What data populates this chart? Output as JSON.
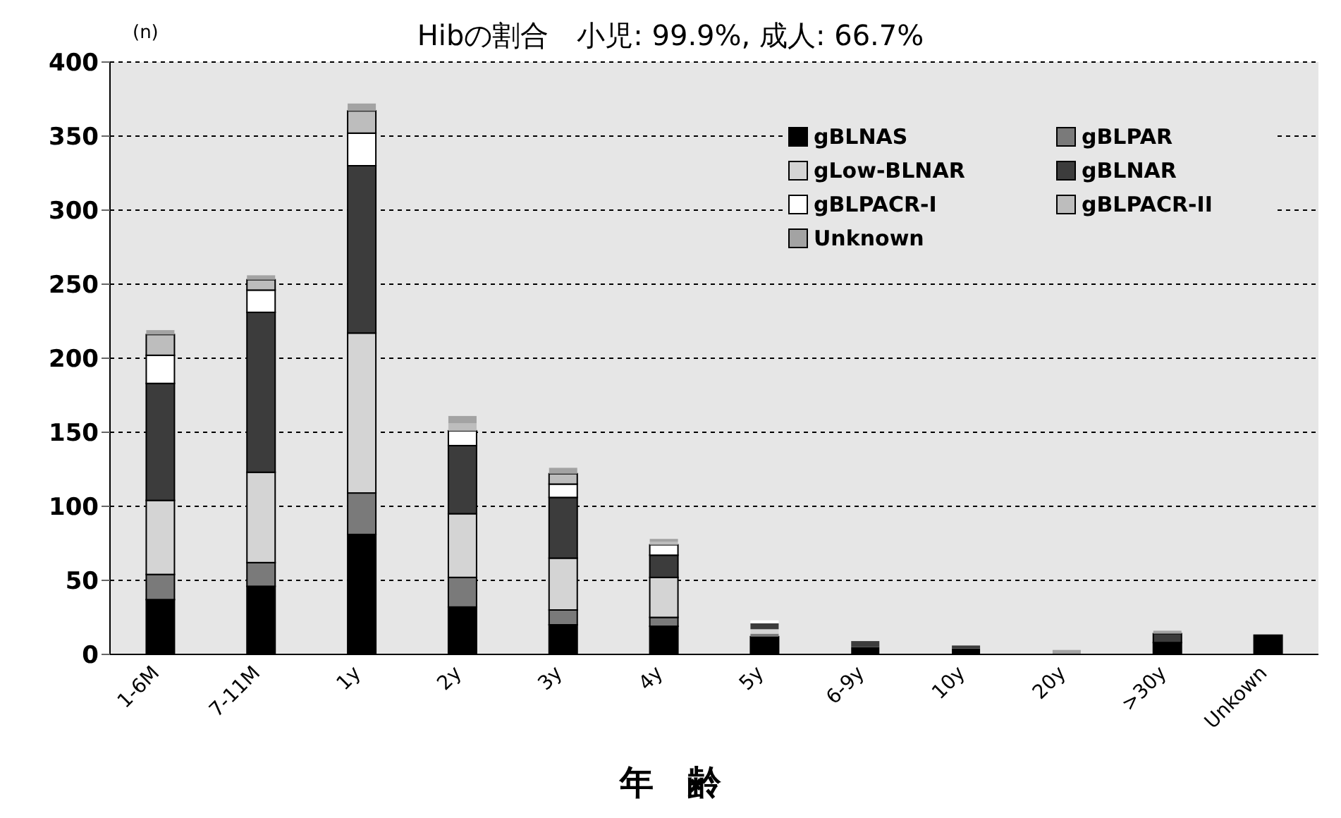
{
  "chart_data": {
    "type": "bar",
    "title": "Hibの割合　小児: 99.9%,  成人: 66.7%",
    "xlabel": "年　齢",
    "ylabel": "(n)",
    "stacked": true,
    "categories": [
      "1-6M",
      "7-11M",
      "1y",
      "2y",
      "3y",
      "4y",
      "5y",
      "6-9y",
      "10y",
      "20y",
      ">30y",
      "Unkown"
    ],
    "series": [
      {
        "name": "gBLNAS",
        "color": "#000000",
        "values": [
          37,
          46,
          81,
          32,
          20,
          19,
          12,
          5,
          4,
          0,
          8,
          13
        ]
      },
      {
        "name": "gBLPAR",
        "color": "#7a7a7a",
        "values": [
          17,
          16,
          28,
          20,
          10,
          6,
          2,
          0,
          0,
          0,
          0,
          0
        ]
      },
      {
        "name": "gLow-BLNAR",
        "color": "#d4d4d4",
        "values": [
          50,
          61,
          108,
          43,
          35,
          27,
          3,
          0,
          0,
          0,
          0,
          0
        ]
      },
      {
        "name": "gBLNAR",
        "color": "#3c3c3c",
        "values": [
          79,
          108,
          113,
          46,
          41,
          15,
          4,
          4,
          2,
          0,
          6,
          0
        ]
      },
      {
        "name": "gBLPACR-I",
        "color": "#ffffff",
        "values": [
          19,
          15,
          22,
          10,
          9,
          7,
          2,
          null,
          0,
          0,
          0,
          0
        ]
      },
      {
        "name": "gBLPACR-II",
        "color": "#bdbdbd",
        "values": [
          14,
          7,
          15,
          5,
          7,
          2,
          0,
          0,
          0,
          0,
          0,
          0
        ]
      },
      {
        "name": "Unknown",
        "color": "#a3a3a3",
        "values": [
          3,
          3,
          5,
          5,
          4,
          2,
          null,
          null,
          0,
          3,
          2,
          0
        ]
      }
    ],
    "ylim": [
      0,
      400
    ],
    "yticks": [
      0,
      50,
      100,
      150,
      200,
      250,
      300,
      350,
      400
    ],
    "grid": "y",
    "legend": "top right"
  }
}
